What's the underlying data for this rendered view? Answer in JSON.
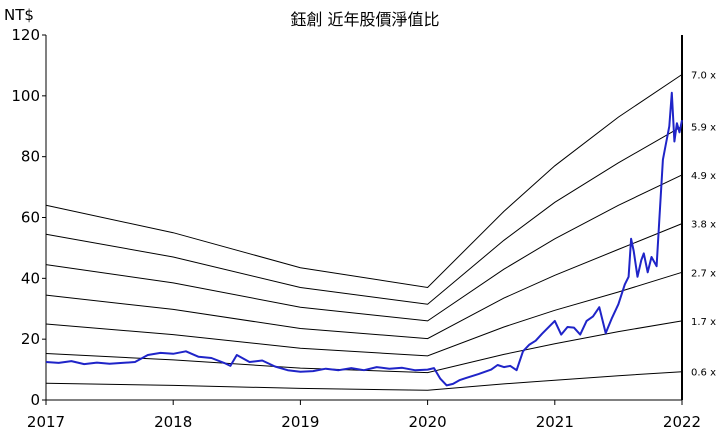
{
  "chart_data": {
    "type": "line",
    "title": "鈺創 近年股價淨值比",
    "ylabel": "NT$",
    "ylim": [
      0,
      120
    ],
    "xlim": [
      2017,
      2022
    ],
    "x_ticks": [
      "2017",
      "2018",
      "2019",
      "2020",
      "2021",
      "2022"
    ],
    "y_ticks": [
      "0",
      "20",
      "40",
      "60",
      "80",
      "100",
      "120"
    ],
    "grid": false,
    "band_labels": [
      "7.0 x",
      "5.9 x",
      "4.9 x",
      "3.8 x",
      "2.7 x",
      "1.7 x",
      "0.6 x"
    ],
    "bands": [
      {
        "name": "7.0 x",
        "x": [
          2017,
          2018,
          2019,
          2020,
          2020.6,
          2021,
          2021.5,
          2022
        ],
        "values": [
          64,
          55,
          43.5,
          37,
          62,
          77,
          93,
          107
        ]
      },
      {
        "name": "5.9 x",
        "x": [
          2017,
          2018,
          2019,
          2020,
          2020.6,
          2021,
          2021.5,
          2022
        ],
        "values": [
          54.5,
          47,
          37,
          31.5,
          52.5,
          65,
          78,
          90
        ]
      },
      {
        "name": "4.9 x",
        "x": [
          2017,
          2018,
          2019,
          2020,
          2020.6,
          2021,
          2021.5,
          2022
        ],
        "values": [
          44.5,
          38.5,
          30.5,
          26,
          43,
          53,
          64,
          74
        ]
      },
      {
        "name": "3.8 x",
        "x": [
          2017,
          2018,
          2019,
          2020,
          2020.6,
          2021,
          2021.5,
          2022
        ],
        "values": [
          34.5,
          29.8,
          23.5,
          20.2,
          33.5,
          41,
          49.5,
          58
        ]
      },
      {
        "name": "2.7 x",
        "x": [
          2017,
          2018,
          2019,
          2020,
          2020.6,
          2021,
          2021.5,
          2022
        ],
        "values": [
          25,
          21.5,
          17,
          14.5,
          24,
          29.5,
          35.5,
          42
        ]
      },
      {
        "name": "1.7 x",
        "x": [
          2017,
          2018,
          2019,
          2020,
          2020.6,
          2021,
          2021.5,
          2022
        ],
        "values": [
          15.3,
          13.2,
          10.5,
          9,
          15,
          18.5,
          22.5,
          26
        ]
      },
      {
        "name": "0.6 x",
        "x": [
          2017,
          2018,
          2019,
          2020,
          2020.6,
          2021,
          2021.5,
          2022
        ],
        "values": [
          5.5,
          4.8,
          3.8,
          3.2,
          5.3,
          6.5,
          8,
          9.3
        ]
      }
    ],
    "price_series": {
      "x": [
        2017,
        2017.1,
        2017.2,
        2017.3,
        2017.4,
        2017.5,
        2017.6,
        2017.7,
        2017.8,
        2017.9,
        2018,
        2018.1,
        2018.2,
        2018.3,
        2018.4,
        2018.45,
        2018.5,
        2018.6,
        2018.7,
        2018.8,
        2018.9,
        2019,
        2019.1,
        2019.2,
        2019.3,
        2019.4,
        2019.5,
        2019.6,
        2019.7,
        2019.8,
        2019.9,
        2020,
        2020.05,
        2020.1,
        2020.15,
        2020.2,
        2020.25,
        2020.3,
        2020.4,
        2020.5,
        2020.55,
        2020.6,
        2020.65,
        2020.7,
        2020.75,
        2020.8,
        2020.85,
        2020.9,
        2021,
        2021.05,
        2021.1,
        2021.15,
        2021.2,
        2021.25,
        2021.3,
        2021.35,
        2021.4,
        2021.45,
        2021.5,
        2021.55,
        2021.58,
        2021.6,
        2021.62,
        2021.65,
        2021.68,
        2021.7,
        2021.73,
        2021.76,
        2021.8,
        2021.82,
        2021.85,
        2021.87,
        2021.9,
        2021.92,
        2021.94,
        2021.96,
        2021.98,
        2022
      ],
      "values": [
        12.5,
        12.2,
        12.8,
        11.8,
        12.3,
        11.9,
        12.2,
        12.5,
        14.8,
        15.5,
        15.2,
        16,
        14.2,
        13.8,
        12.2,
        11.2,
        14.8,
        12.5,
        13,
        11,
        9.8,
        9.3,
        9.5,
        10.3,
        9.8,
        10.5,
        9.8,
        10.8,
        10.3,
        10.6,
        9.8,
        10,
        10.5,
        7,
        4.8,
        5.3,
        6.5,
        7.2,
        8.5,
        10,
        11.5,
        10.8,
        11.2,
        9.8,
        16,
        18.2,
        19.5,
        21.8,
        26,
        21.5,
        24,
        23.8,
        21.5,
        26,
        27.5,
        30.5,
        22,
        27,
        31.5,
        38,
        40.5,
        53,
        49,
        40.5,
        46,
        48.2,
        42,
        47,
        44,
        58,
        79,
        83.5,
        90,
        101,
        85,
        91,
        88,
        92
      ]
    }
  }
}
